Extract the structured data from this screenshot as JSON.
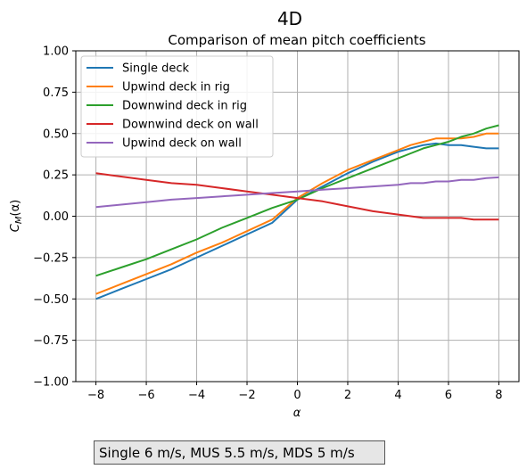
{
  "figure": {
    "suptitle": "4D",
    "caption": "Single 6 m/s, MUS 5.5 m/s, MDS 5 m/s"
  },
  "chart_data": {
    "type": "line",
    "title": "Comparison of mean pitch coefficients",
    "xlabel": "α",
    "ylabel_main": "C",
    "ylabel_sub": "M",
    "ylabel_suffix": "(α)",
    "xlim": [
      -8.8,
      8.8
    ],
    "ylim": [
      -1.0,
      1.0
    ],
    "xticks": [
      -8,
      -6,
      -4,
      -2,
      0,
      2,
      4,
      6,
      8
    ],
    "xtick_labels": [
      "−8",
      "−6",
      "−4",
      "−2",
      "0",
      "2",
      "4",
      "6",
      "8"
    ],
    "yticks": [
      -1.0,
      -0.75,
      -0.5,
      -0.25,
      0.0,
      0.25,
      0.5,
      0.75,
      1.0
    ],
    "ytick_labels": [
      "−1.00",
      "−0.75",
      "−0.50",
      "−0.25",
      "0.00",
      "0.25",
      "0.50",
      "0.75",
      "1.00"
    ],
    "grid": true,
    "legend_position": "upper-left",
    "x": [
      -8,
      -7,
      -6,
      -5,
      -4,
      -3,
      -2,
      -1,
      0,
      1,
      2,
      3,
      4,
      4.5,
      5,
      5.5,
      6,
      6.5,
      7,
      7.5,
      8
    ],
    "series": [
      {
        "name": "Single deck",
        "color": "#1f77b4",
        "values": [
          -0.5,
          -0.44,
          -0.38,
          -0.32,
          -0.25,
          -0.18,
          -0.11,
          -0.04,
          0.1,
          0.18,
          0.26,
          0.33,
          0.39,
          0.41,
          0.43,
          0.44,
          0.43,
          0.43,
          0.42,
          0.41,
          0.41
        ]
      },
      {
        "name": "Upwind deck in rig",
        "color": "#ff7f0e",
        "values": [
          -0.47,
          -0.41,
          -0.35,
          -0.29,
          -0.22,
          -0.16,
          -0.09,
          -0.02,
          0.11,
          0.2,
          0.28,
          0.34,
          0.4,
          0.43,
          0.45,
          0.47,
          0.47,
          0.47,
          0.48,
          0.5,
          0.5
        ]
      },
      {
        "name": "Downwind deck in rig",
        "color": "#2ca02c",
        "values": [
          -0.36,
          -0.31,
          -0.26,
          -0.2,
          -0.14,
          -0.07,
          -0.01,
          0.05,
          0.1,
          0.17,
          0.23,
          0.29,
          0.35,
          0.38,
          0.41,
          0.43,
          0.45,
          0.48,
          0.5,
          0.53,
          0.55
        ]
      },
      {
        "name": "Downwind deck on wall",
        "color": "#d62728",
        "values": [
          0.26,
          0.24,
          0.22,
          0.2,
          0.19,
          0.17,
          0.15,
          0.13,
          0.11,
          0.09,
          0.06,
          0.03,
          0.01,
          0.0,
          -0.01,
          -0.01,
          -0.01,
          -0.01,
          -0.02,
          -0.02,
          -0.02
        ]
      },
      {
        "name": "Upwind deck on wall",
        "color": "#9467bd",
        "values": [
          0.055,
          0.07,
          0.085,
          0.1,
          0.11,
          0.12,
          0.13,
          0.14,
          0.15,
          0.16,
          0.17,
          0.18,
          0.19,
          0.2,
          0.2,
          0.21,
          0.21,
          0.22,
          0.22,
          0.23,
          0.235
        ]
      }
    ]
  }
}
